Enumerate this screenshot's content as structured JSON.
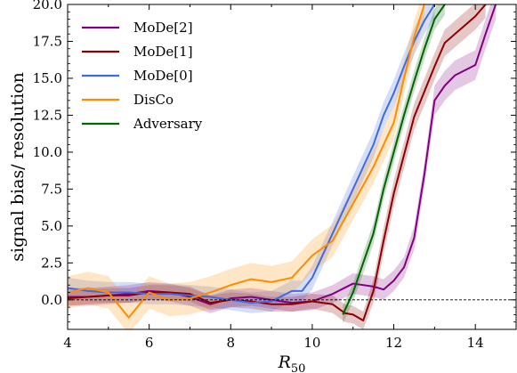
{
  "chart_data": {
    "type": "line",
    "xlabel": "R_50",
    "xlabel_main": "R",
    "xlabel_sub": "50",
    "ylabel": "signal bias/ resolution",
    "xlim": [
      4,
      15
    ],
    "ylim": [
      -2,
      20
    ],
    "xticks": [
      4,
      6,
      8,
      10,
      12,
      14
    ],
    "xtick_labels": [
      "4",
      "6",
      "8",
      "10",
      "12",
      "14"
    ],
    "yticks": [
      0,
      2.5,
      5,
      7.5,
      10,
      12.5,
      15,
      17.5,
      20
    ],
    "ytick_labels": [
      "0.0",
      "2.5",
      "5.0",
      "7.5",
      "10.0",
      "12.5",
      "15.0",
      "17.5",
      "20.0"
    ],
    "reference_line": 0,
    "legend_position": "top-left",
    "grid": false,
    "series": [
      {
        "name": "MoDe[2]",
        "color": "#800080",
        "x": [
          4.0,
          4.5,
          5.0,
          5.5,
          6.0,
          6.5,
          7.0,
          7.5,
          8.0,
          8.5,
          9.0,
          9.5,
          10.0,
          10.5,
          11.0,
          11.5,
          11.75,
          12.0,
          12.25,
          12.5,
          12.75,
          13.0,
          13.25,
          13.5,
          14.0,
          14.25,
          14.5
        ],
        "y": [
          0.2,
          0.2,
          0.3,
          0.4,
          0.6,
          0.5,
          0.2,
          -0.3,
          0.1,
          0.2,
          0.0,
          -0.2,
          -0.1,
          0.4,
          1.1,
          0.9,
          0.7,
          1.3,
          2.2,
          4.2,
          8.5,
          13.5,
          14.5,
          15.2,
          15.9,
          18.0,
          20.0
        ],
        "band": [
          0.6,
          0.6,
          0.6,
          0.6,
          0.6,
          0.6,
          0.6,
          0.6,
          0.6,
          0.6,
          0.6,
          0.6,
          0.6,
          0.6,
          0.7,
          0.7,
          0.7,
          0.7,
          0.7,
          0.8,
          0.8,
          1.0,
          1.0,
          1.0,
          1.0,
          1.0,
          1.0
        ]
      },
      {
        "name": "MoDe[1]",
        "color": "#8b0000",
        "x": [
          4.0,
          4.5,
          5.0,
          5.5,
          6.0,
          6.5,
          7.0,
          7.5,
          8.0,
          8.5,
          9.0,
          9.5,
          10.0,
          10.5,
          10.8,
          11.0,
          11.25,
          11.5,
          11.75,
          12.0,
          12.5,
          13.0,
          13.25,
          13.5,
          13.75,
          14.0,
          14.25
        ],
        "y": [
          0.1,
          0.2,
          0.3,
          0.3,
          0.5,
          0.5,
          0.4,
          -0.2,
          0.0,
          -0.1,
          -0.3,
          -0.3,
          -0.1,
          -0.3,
          -0.9,
          -1.0,
          -1.4,
          0.6,
          4.0,
          7.2,
          12.4,
          15.8,
          17.4,
          18.0,
          18.6,
          19.2,
          20.0
        ],
        "band": [
          0.5,
          0.5,
          0.5,
          0.5,
          0.5,
          0.5,
          0.5,
          0.5,
          0.5,
          0.5,
          0.5,
          0.5,
          0.5,
          0.6,
          0.6,
          0.6,
          0.6,
          0.8,
          0.9,
          0.9,
          0.9,
          0.9,
          0.9,
          0.9,
          0.9,
          0.9,
          0.9
        ]
      },
      {
        "name": "MoDe[0]",
        "color": "#4169e1",
        "x": [
          4.0,
          4.5,
          5.0,
          5.5,
          6.0,
          6.5,
          7.0,
          7.5,
          8.0,
          8.5,
          9.0,
          9.5,
          9.75,
          10.0,
          10.5,
          11.0,
          11.5,
          11.75,
          12.0,
          12.25,
          12.5,
          12.75,
          13.0
        ],
        "y": [
          0.8,
          0.6,
          0.5,
          0.5,
          0.4,
          0.4,
          0.3,
          0.2,
          0.0,
          -0.2,
          -0.1,
          0.6,
          0.6,
          1.5,
          4.5,
          7.5,
          10.5,
          12.5,
          14.0,
          15.8,
          17.5,
          18.9,
          20.0
        ],
        "band": [
          0.7,
          0.7,
          0.7,
          0.7,
          0.7,
          0.7,
          0.7,
          0.7,
          0.7,
          0.7,
          0.7,
          0.7,
          0.7,
          0.8,
          0.8,
          0.9,
          0.9,
          0.9,
          0.9,
          0.9,
          0.9,
          0.9,
          0.9
        ]
      },
      {
        "name": "DisCo",
        "color": "#ff8c00",
        "x": [
          4.0,
          4.5,
          5.0,
          5.5,
          6.0,
          6.5,
          7.0,
          7.5,
          8.0,
          8.5,
          9.0,
          9.5,
          10.0,
          10.5,
          11.0,
          11.5,
          12.0,
          12.25,
          12.5,
          12.75
        ],
        "y": [
          0.5,
          0.8,
          0.5,
          -1.2,
          0.5,
          0.0,
          0.1,
          0.5,
          1.0,
          1.4,
          1.2,
          1.5,
          3.0,
          4.0,
          6.5,
          9.0,
          12.0,
          15.0,
          17.8,
          20.0
        ],
        "band": [
          1.1,
          1.1,
          1.1,
          1.1,
          1.1,
          1.1,
          1.1,
          1.1,
          1.1,
          1.1,
          1.1,
          1.1,
          1.1,
          1.1,
          1.1,
          1.1,
          1.1,
          1.1,
          1.1,
          1.1
        ]
      },
      {
        "name": "Adversary",
        "color": "#006400",
        "x": [
          10.75,
          11.0,
          11.25,
          11.5,
          11.75,
          12.0,
          12.25,
          12.5,
          12.75,
          13.0,
          13.25
        ],
        "y": [
          -1.0,
          0.5,
          2.5,
          4.5,
          7.5,
          10.0,
          12.5,
          14.8,
          17.0,
          19.0,
          20.0
        ],
        "band": [
          0.6,
          0.6,
          0.7,
          0.7,
          0.7,
          0.7,
          0.7,
          0.7,
          0.7,
          0.7,
          0.7
        ]
      }
    ]
  }
}
